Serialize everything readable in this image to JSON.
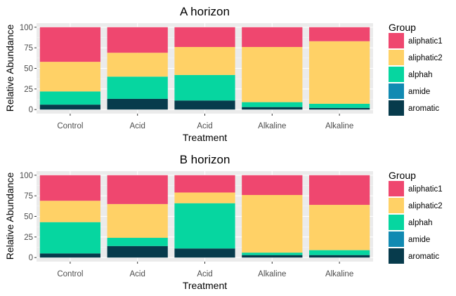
{
  "chart_data": [
    {
      "type": "bar",
      "stacked": true,
      "title": "A horizon",
      "xlabel": "Treatment",
      "ylabel": "Relative Abundance",
      "ylim": [
        0,
        100
      ],
      "yticks": [
        0,
        25,
        50,
        75,
        100
      ],
      "grid": true,
      "legend": "right",
      "legend_title": "Group",
      "categories": [
        "Control",
        "Acid",
        "Acid",
        "Alkaline",
        "Alkaline"
      ],
      "series": [
        {
          "name": "aromatic",
          "color": "#073B4C",
          "values": [
            6,
            13,
            11,
            3,
            2
          ]
        },
        {
          "name": "amide",
          "color": "#118AB2",
          "values": [
            0,
            0,
            0,
            0,
            0
          ]
        },
        {
          "name": "alphah",
          "color": "#06D6A0",
          "values": [
            16,
            27,
            31,
            6,
            5
          ]
        },
        {
          "name": "aliphatic2",
          "color": "#FFD166",
          "values": [
            36,
            29,
            34,
            67,
            76
          ]
        },
        {
          "name": "aliphatic1",
          "color": "#EF476F",
          "values": [
            42,
            31,
            24,
            24,
            17
          ]
        }
      ]
    },
    {
      "type": "bar",
      "stacked": true,
      "title": "B horizon",
      "xlabel": "Treatment",
      "ylabel": "Relative Abundance",
      "ylim": [
        0,
        100
      ],
      "yticks": [
        0,
        25,
        50,
        75,
        100
      ],
      "grid": true,
      "legend": "right",
      "legend_title": "Group",
      "categories": [
        "Control",
        "Acid",
        "Acid",
        "Alkaline",
        "Alkaline"
      ],
      "series": [
        {
          "name": "aromatic",
          "color": "#073B4C",
          "values": [
            5,
            14,
            11,
            3,
            3
          ]
        },
        {
          "name": "amide",
          "color": "#118AB2",
          "values": [
            0,
            0,
            0,
            0,
            0
          ]
        },
        {
          "name": "alphah",
          "color": "#06D6A0",
          "values": [
            38,
            10,
            55,
            3,
            6
          ]
        },
        {
          "name": "aliphatic2",
          "color": "#FFD166",
          "values": [
            26,
            41,
            13,
            70,
            55
          ]
        },
        {
          "name": "aliphatic1",
          "color": "#EF476F",
          "values": [
            31,
            35,
            21,
            24,
            36
          ]
        }
      ]
    }
  ]
}
